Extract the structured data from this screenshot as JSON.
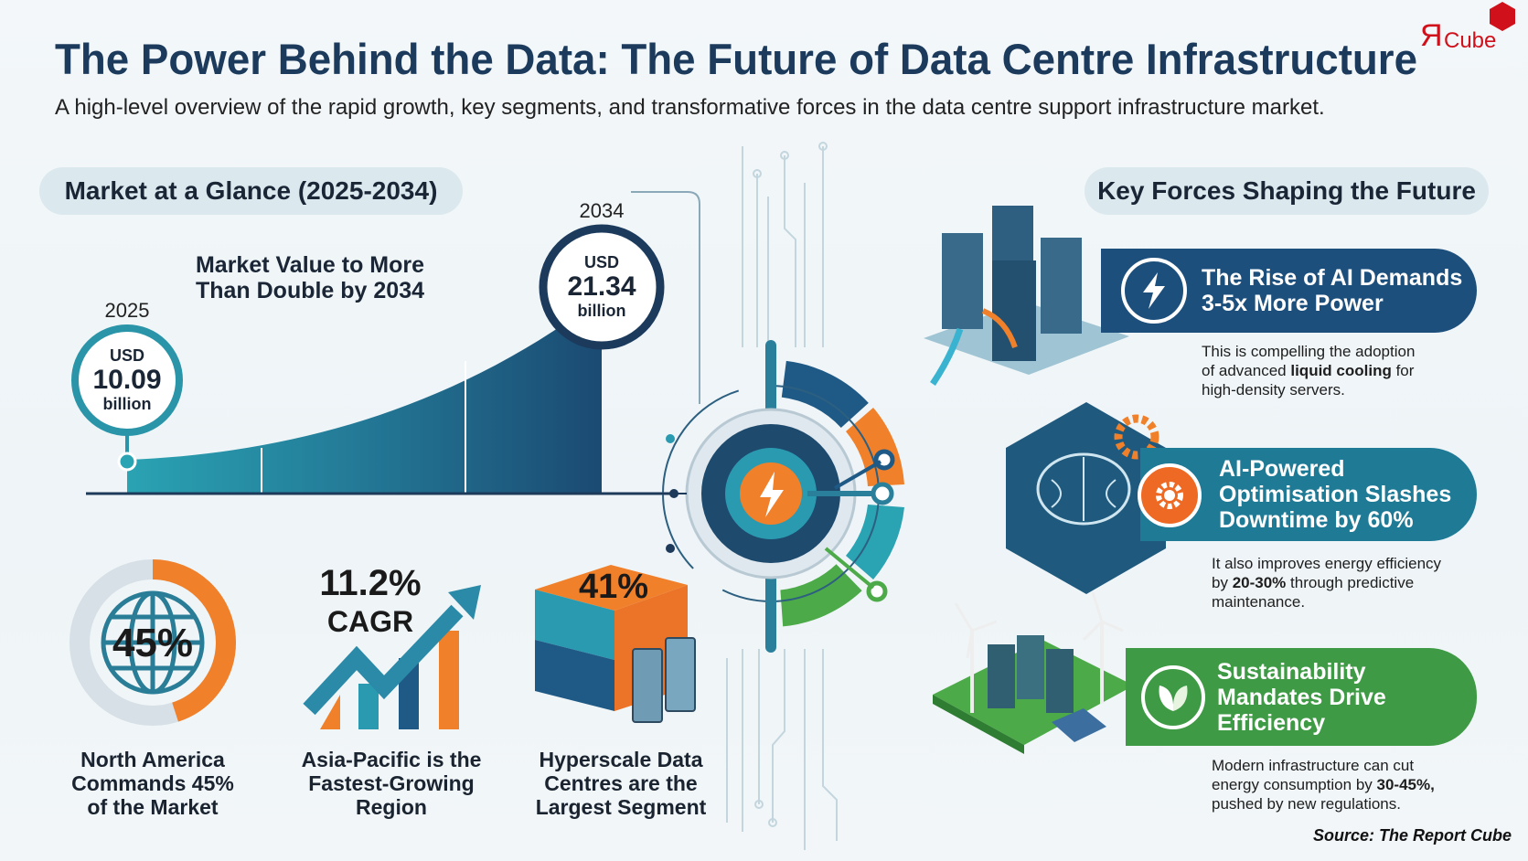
{
  "header": {
    "title": "The Power Behind the Data: The Future of Data Centre Infrastructure",
    "subtitle": "A high-level overview of the rapid growth, key segments, and transformative forces in the data centre support infrastructure market.",
    "logo_text": "ЯCube"
  },
  "market": {
    "section_label": "Market at a Glance (2025-2034)",
    "headline_line1": "Market Value to More",
    "headline_line2": "Than Double by 2034",
    "start": {
      "year": "2025",
      "currency": "USD",
      "value": "10.09",
      "unit": "billion"
    },
    "end": {
      "year": "2034",
      "currency": "USD",
      "value": "21.34",
      "unit": "billion"
    }
  },
  "stats": [
    {
      "value": "45%",
      "caption": [
        "North America",
        "Commands 45%",
        "of the Market"
      ],
      "share": 0.45
    },
    {
      "value": "11.2%",
      "sub": "CAGR",
      "caption": [
        "Asia-Pacific is the",
        "Fastest-Growing",
        "Region"
      ]
    },
    {
      "value": "41%",
      "caption": [
        "Hyperscale Data",
        "Centres are the",
        "Largest Segment"
      ]
    }
  ],
  "forces": {
    "section_label": "Key Forces Shaping the Future",
    "items": [
      {
        "icon": "lightning-icon",
        "title": [
          "The Rise of AI Demands",
          "3-5x More Power"
        ],
        "desc_pre1": "This is compelling the adoption",
        "desc_pre2": "of advanced ",
        "desc_bold": "liquid cooling",
        "desc_post2": " for",
        "desc_line3": "high-density servers."
      },
      {
        "icon": "gear-icon",
        "title": [
          "AI-Powered",
          "Optimisation Slashes",
          "Downtime by 60%"
        ],
        "desc_line1": "It also improves energy efficiency",
        "desc_pre2": "by ",
        "desc_bold": "20-30%",
        "desc_post2": " through predictive",
        "desc_line3": "maintenance."
      },
      {
        "icon": "leaf-icon",
        "title": [
          "Sustainability",
          "Mandates Drive",
          "Efficiency"
        ],
        "desc_line1": "Modern infrastructure can cut",
        "desc_pre2": "energy consumption by ",
        "desc_bold": "30-45%,",
        "desc_post2": "",
        "desc_line3": "pushed by new regulations."
      }
    ]
  },
  "colors": {
    "navy": "#1b3a5c",
    "teal": "#2a95a8",
    "orange": "#f0802a",
    "green": "#3f9a45",
    "blue_ribbon": "#1d4f7c",
    "teal_ribbon": "#1f7a96",
    "logo_red": "#d0101a"
  },
  "footer": {
    "source": "Source: The Report Cube"
  }
}
